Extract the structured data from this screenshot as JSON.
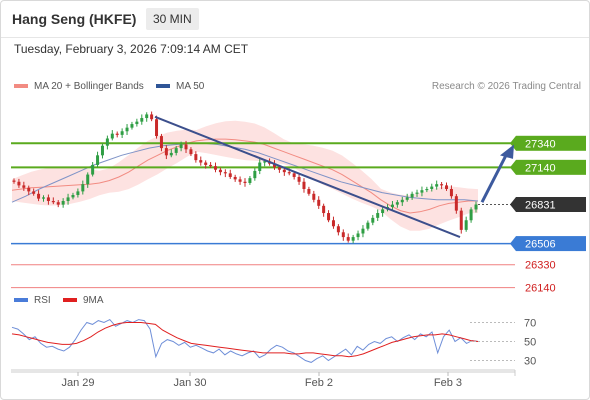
{
  "header": {
    "instrument": "Hang Seng (HKFE)",
    "timeframe": "30 MIN",
    "datetime": "Tuesday, February 3, 2026 7:09:14 AM CET"
  },
  "legend": {
    "price": [
      {
        "label": "MA 20 + Bollinger Bands",
        "color": "#f28b82"
      },
      {
        "label": "MA 50",
        "color": "#2f5597"
      }
    ],
    "rsi": [
      {
        "label": "RSI",
        "color": "#4a7cd9"
      },
      {
        "label": "9MA",
        "color": "#e02020"
      }
    ],
    "credit": "Research © 2026 Trading Central"
  },
  "colors": {
    "resistance": "#5aaa1e",
    "support": "#3a7bd5",
    "target": "#f08080",
    "current": "#333333",
    "candle_up": "#2f9e44",
    "candle_down": "#c92a2a",
    "trendline": "#3c4f8c",
    "bollinger_fill": "#fde2e1",
    "rsi_line": "#6f8fd8",
    "rsi_ma": "#e02020"
  },
  "levels": {
    "r2": {
      "label": "27340",
      "value": 27340
    },
    "r1": {
      "label": "27140",
      "value": 27140
    },
    "current": {
      "label": "26831",
      "value": 26831
    },
    "s1": {
      "label": "26506",
      "value": 26506
    },
    "s2": {
      "label": "26330",
      "value": 26330
    },
    "s3": {
      "label": "26140",
      "value": 26140
    }
  },
  "x_axis": {
    "ticks": [
      "Jan 29",
      "Jan 30",
      "Feb 2",
      "Feb 3"
    ]
  },
  "rsi_axis": {
    "ticks": [
      "70",
      "50",
      "30"
    ]
  },
  "chart_data": {
    "type": "candlestick",
    "y_unit": "index points",
    "ylim": [
      26120,
      27700
    ],
    "x": [
      "Jan 29",
      "Jan 30",
      "Feb 2",
      "Feb 3"
    ],
    "close_series": [
      27020,
      26990,
      26970,
      26940,
      26920,
      26880,
      26890,
      26860,
      26850,
      26830,
      26860,
      26890,
      26910,
      26940,
      27000,
      27080,
      27160,
      27240,
      27320,
      27380,
      27420,
      27410,
      27440,
      27470,
      27500,
      27520,
      27550,
      27580,
      27540,
      27400,
      27300,
      27240,
      27260,
      27300,
      27330,
      27290,
      27250,
      27200,
      27180,
      27160,
      27150,
      27120,
      27100,
      27090,
      27060,
      27040,
      27020,
      27010,
      27050,
      27110,
      27180,
      27190,
      27170,
      27140,
      27120,
      27100,
      27090,
      27060,
      27020,
      26960,
      26920,
      26870,
      26820,
      26760,
      26700,
      26650,
      26600,
      26560,
      26530,
      26560,
      26590,
      26630,
      26680,
      26720,
      26760,
      26790,
      26810,
      26830,
      26850,
      26870,
      26890,
      26920,
      26930,
      26950,
      26960,
      26980,
      27000,
      26990,
      26960,
      26900,
      26780,
      26620,
      26700,
      26790,
      26831
    ],
    "overlays": {
      "ma20": [
        26950,
        26960,
        26970,
        26975,
        26980,
        26985,
        26990,
        26995,
        27000,
        27010,
        27030,
        27060,
        27100,
        27150,
        27200,
        27240,
        27280,
        27310,
        27340,
        27360,
        27370,
        27375,
        27375,
        27370,
        27360,
        27350,
        27330,
        27300,
        27270,
        27240,
        27210,
        27180,
        27150,
        27120,
        27080,
        27030,
        26980,
        26930,
        26870,
        26820,
        26780,
        26760,
        26770,
        26790,
        26820,
        26840,
        26850,
        26860,
        26860
      ],
      "ma50": [
        26850,
        26900,
        26960,
        27010,
        27060,
        27110,
        27160,
        27200,
        27240,
        27270,
        27300,
        27320,
        27330,
        27340,
        27340,
        27330,
        27310,
        27290,
        27260,
        27220,
        27180,
        27140,
        27100,
        27060,
        27020,
        26990,
        26960,
        26930,
        26910,
        26890,
        26880,
        26870,
        26870,
        26870,
        26860
      ]
    },
    "annotations": [
      "trendline",
      "projection-arrow"
    ]
  },
  "rsi_data": {
    "type": "line",
    "ylim": [
      20,
      80
    ],
    "rsi": [
      65,
      63,
      58,
      52,
      55,
      48,
      44,
      45,
      42,
      40,
      44,
      52,
      62,
      70,
      68,
      72,
      70,
      73,
      66,
      69,
      72,
      70,
      73,
      72,
      63,
      34,
      48,
      52,
      50,
      46,
      49,
      44,
      46,
      43,
      40,
      38,
      42,
      36,
      40,
      37,
      35,
      38,
      40,
      33,
      36,
      42,
      46,
      44,
      40,
      38,
      34,
      30,
      28,
      32,
      35,
      30,
      34,
      38,
      42,
      36,
      45,
      41,
      47,
      50,
      48,
      53,
      55,
      50,
      54,
      57,
      52,
      58,
      55,
      60,
      38,
      55,
      62,
      50,
      54,
      48,
      51,
      50
    ],
    "ma9": [
      58,
      57,
      55,
      53,
      51,
      49,
      48,
      47,
      47,
      48,
      51,
      55,
      60,
      64,
      67,
      69,
      70,
      70,
      70,
      69,
      68,
      62,
      58,
      54,
      51,
      48,
      47,
      46,
      45,
      44,
      43,
      42,
      41,
      40,
      39,
      38,
      38,
      38,
      38,
      37,
      37,
      38,
      38,
      37,
      36,
      35,
      35,
      34,
      35,
      37,
      40,
      43,
      46,
      49,
      51,
      53,
      55,
      56,
      57,
      57,
      58,
      57,
      55,
      53,
      51,
      50
    ]
  }
}
